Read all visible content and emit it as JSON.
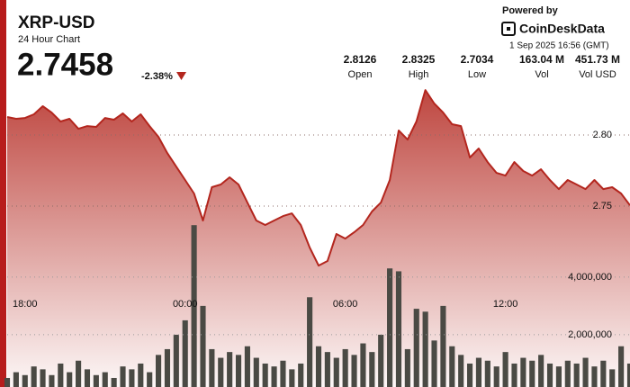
{
  "chart_data": {
    "type": "line",
    "title": "XRP-USD",
    "subtitle": "24 Hour Chart",
    "price": "2.7458",
    "change": "-2.38%",
    "powered": "Powered by",
    "brand": "CoinDeskData",
    "timestamp": "1 Sep 2025 16:56 (GMT)",
    "stats": [
      {
        "value": "2.8126",
        "label": "Open"
      },
      {
        "value": "2.8325",
        "label": "High"
      },
      {
        "value": "2.7034",
        "label": "Low"
      },
      {
        "value": "163.04 M",
        "label": "Vol"
      },
      {
        "value": "451.73 M",
        "label": "Vol USD"
      }
    ],
    "categories": [
      null,
      null,
      "18:00",
      null,
      null,
      null,
      null,
      null,
      null,
      null,
      null,
      null,
      null,
      null,
      null,
      null,
      null,
      null,
      null,
      null,
      "00:00",
      null,
      null,
      null,
      null,
      null,
      null,
      null,
      null,
      null,
      null,
      null,
      null,
      null,
      null,
      null,
      null,
      null,
      "06:00",
      null,
      null,
      null,
      null,
      null,
      null,
      null,
      null,
      null,
      null,
      null,
      null,
      null,
      null,
      null,
      null,
      null,
      "12:00",
      null,
      null,
      null,
      null,
      null,
      null,
      null,
      null,
      null,
      null,
      null,
      null,
      null,
      null
    ],
    "series": [
      {
        "type": "line",
        "color": "#b3261e",
        "values": [
          2.8127,
          2.8114,
          2.812,
          2.8146,
          2.8203,
          2.8158,
          2.8095,
          2.8114,
          2.8044,
          2.8063,
          2.8057,
          2.812,
          2.8108,
          2.8152,
          2.8095,
          2.8146,
          2.8063,
          2.7987,
          2.7873,
          2.7778,
          2.7684,
          2.7589,
          2.7399,
          2.7633,
          2.7652,
          2.7703,
          2.7652,
          2.7525,
          2.7399,
          2.7367,
          2.7399,
          2.743,
          2.7449,
          2.7367,
          2.7209,
          2.7082,
          2.7114,
          2.7304,
          2.7272,
          2.7316,
          2.7367,
          2.7462,
          2.7525,
          2.7684,
          2.8032,
          2.7968,
          2.8095,
          2.8316,
          2.8222,
          2.8158,
          2.8076,
          2.8063,
          2.7842,
          2.7905,
          2.781,
          2.7734,
          2.7715,
          2.781,
          2.7747,
          2.7715,
          2.7759,
          2.7684,
          2.762,
          2.7684,
          2.7652,
          2.762,
          2.7684,
          2.762,
          2.7633,
          2.7589,
          2.7506
        ]
      },
      {
        "type": "bar",
        "axis": "y2",
        "color": "#4a4a44",
        "values": [
          500000,
          700000,
          600000,
          900000,
          800000,
          600000,
          1000000,
          700000,
          1100000,
          800000,
          600000,
          700000,
          500000,
          900000,
          800000,
          1000000,
          700000,
          1300000,
          1500000,
          2000000,
          2500000,
          5800000,
          3000000,
          1500000,
          1200000,
          1400000,
          1300000,
          1600000,
          1200000,
          1000000,
          900000,
          1100000,
          800000,
          1000000,
          3300000,
          1600000,
          1400000,
          1200000,
          1500000,
          1300000,
          1700000,
          1400000,
          2000000,
          4300000,
          4200000,
          1500000,
          2900000,
          2800000,
          1800000,
          3000000,
          1600000,
          1300000,
          1000000,
          1200000,
          1100000,
          900000,
          1400000,
          1000000,
          1200000,
          1100000,
          1300000,
          1000000,
          900000,
          1100000,
          1000000,
          1200000,
          900000,
          1100000,
          800000,
          1600000,
          1000000
        ]
      }
    ],
    "ylim": [
      2.619,
      2.838
    ],
    "yticks": [
      {
        "value": 2.75,
        "label": "2.75"
      },
      {
        "value": 2.8,
        "label": "2.80"
      }
    ],
    "y2lim": [
      0,
      10800000
    ],
    "y2ticks": [
      {
        "value": 2000000,
        "label": "2,000,000"
      },
      {
        "value": 4000000,
        "label": "4,000,000"
      }
    ],
    "grid": true
  }
}
